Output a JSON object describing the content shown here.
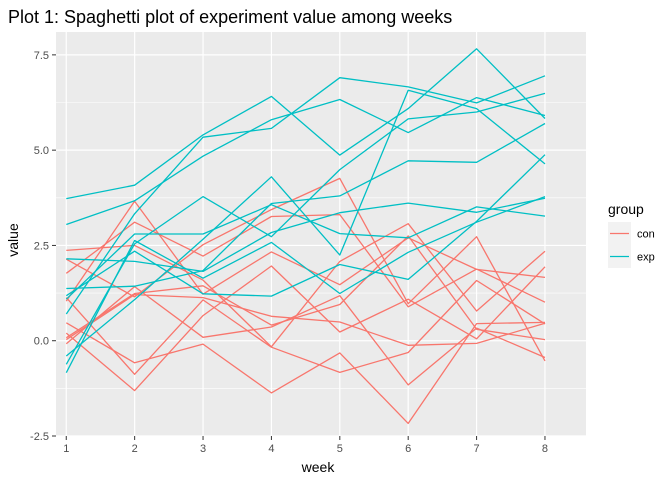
{
  "chart_data": {
    "type": "line",
    "title": "Plot 1: Spaghetti plot of experiment value among weeks",
    "xlabel": "week",
    "ylabel": "value",
    "x": [
      1,
      2,
      3,
      4,
      5,
      6,
      7,
      8
    ],
    "xlim": [
      0.85,
      8.6
    ],
    "ylim": [
      -2.5,
      8.1
    ],
    "yticks": [
      -2.5,
      0.0,
      2.5,
      5.0,
      7.5
    ],
    "ytick_labels": [
      "-2.5",
      "0.0",
      "2.5",
      "5.0",
      "7.5"
    ],
    "xtick_labels": [
      "1",
      "2",
      "3",
      "4",
      "5",
      "6",
      "7",
      "8"
    ],
    "grid": true,
    "panel_background": "#EBEBEB",
    "legend": {
      "title": "group",
      "position": "right",
      "entries": [
        {
          "label": "con",
          "color": "#F8766D"
        },
        {
          "label": "exp",
          "color": "#00BFC4"
        }
      ]
    },
    "series": [
      {
        "group": "con",
        "values": [
          0.2,
          -1.31,
          0.66,
          1.96,
          0.23,
          1.09,
          0.05,
          1.94
        ]
      },
      {
        "group": "con",
        "values": [
          1.13,
          -0.88,
          1.07,
          -0.17,
          -0.83,
          -0.31,
          1.58,
          0.44
        ]
      },
      {
        "group": "con",
        "values": [
          1.77,
          3.11,
          2.22,
          3.26,
          3.31,
          0.89,
          1.88,
          1.01
        ]
      },
      {
        "group": "con",
        "values": [
          1.04,
          3.66,
          1.22,
          2.33,
          1.47,
          2.7,
          1.87,
          1.66
        ]
      },
      {
        "group": "con",
        "values": [
          0.47,
          -0.58,
          -0.09,
          -1.37,
          -0.32,
          -2.17,
          0.45,
          0.48
        ]
      },
      {
        "group": "con",
        "values": [
          2.37,
          2.5,
          1.59,
          -0.16,
          2.08,
          3.07,
          0.78,
          2.35
        ]
      },
      {
        "group": "con",
        "values": [
          0.03,
          1.21,
          1.13,
          0.64,
          0.49,
          -0.12,
          -0.07,
          0.46
        ]
      },
      {
        "group": "con",
        "values": [
          -0.08,
          1.42,
          0.09,
          0.36,
          1.18,
          -1.16,
          0.33,
          -0.44
        ]
      },
      {
        "group": "con",
        "values": [
          0.08,
          1.24,
          1.44,
          0.41,
          0.95,
          2.75,
          0.3,
          0.03
        ]
      },
      {
        "group": "con",
        "values": [
          2.14,
          1.15,
          2.52,
          3.44,
          4.26,
          0.97,
          2.73,
          -0.53
        ]
      },
      {
        "group": "exp",
        "values": [
          3.05,
          3.67,
          4.84,
          5.8,
          6.33,
          5.46,
          6.38,
          5.91
        ]
      },
      {
        "group": "exp",
        "values": [
          -0.84,
          2.63,
          1.64,
          2.58,
          1.24,
          2.32,
          3.11,
          3.78
        ]
      },
      {
        "group": "exp",
        "values": [
          2.15,
          2.08,
          1.82,
          2.84,
          3.36,
          3.61,
          3.37,
          3.74
        ]
      },
      {
        "group": "exp",
        "values": [
          -0.62,
          2.54,
          3.78,
          2.73,
          4.49,
          5.82,
          6.0,
          6.49
        ]
      },
      {
        "group": "exp",
        "values": [
          0.7,
          3.33,
          5.34,
          5.57,
          6.9,
          6.66,
          6.24,
          6.95
        ]
      },
      {
        "group": "exp",
        "values": [
          3.73,
          4.08,
          5.4,
          6.41,
          4.87,
          6.09,
          7.66,
          5.83
        ]
      },
      {
        "group": "exp",
        "values": [
          1.18,
          2.35,
          1.23,
          1.17,
          2.0,
          1.61,
          3.13,
          4.88
        ]
      },
      {
        "group": "exp",
        "values": [
          1.37,
          1.43,
          1.84,
          3.6,
          3.8,
          4.72,
          4.68,
          5.7
        ]
      },
      {
        "group": "exp",
        "values": [
          -0.4,
          1.08,
          2.66,
          4.3,
          2.25,
          6.57,
          6.09,
          4.64
        ]
      },
      {
        "group": "exp",
        "values": [
          1.09,
          2.8,
          2.8,
          3.57,
          2.81,
          2.7,
          3.51,
          3.27
        ]
      }
    ]
  }
}
